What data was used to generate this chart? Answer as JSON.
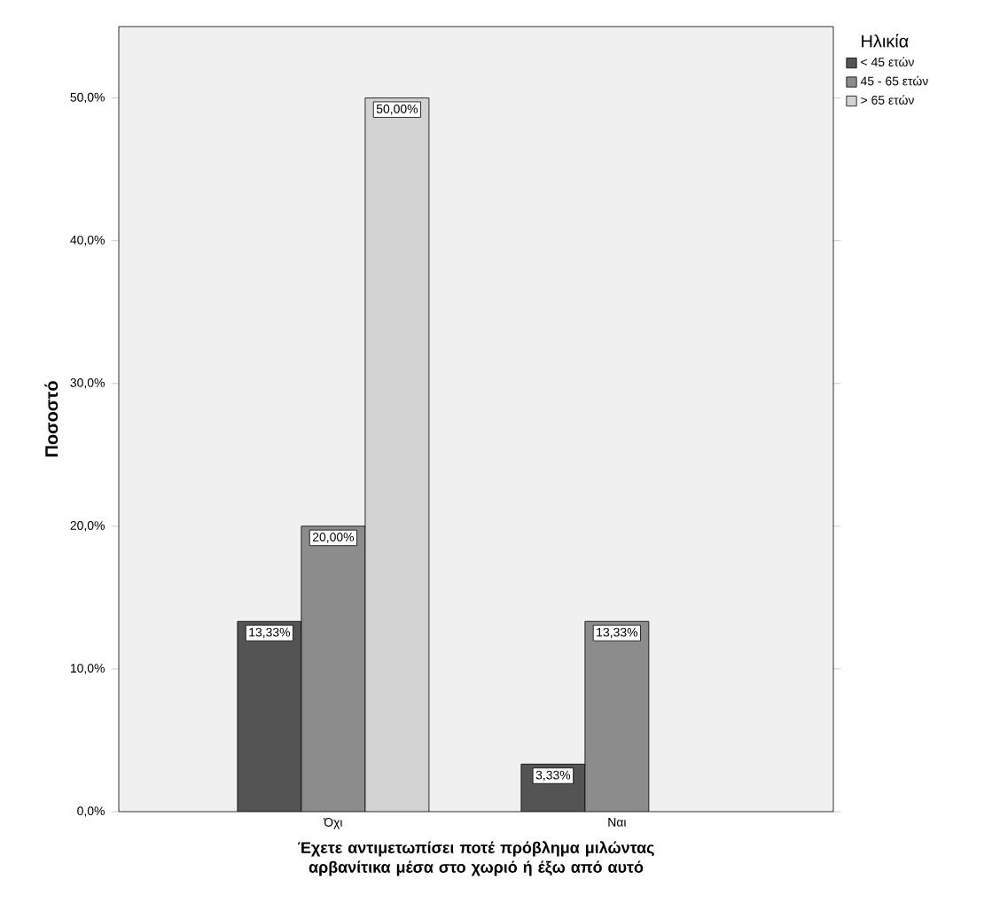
{
  "chart_data": {
    "type": "bar",
    "xlabel": "Έχετε αντιμετωπίσει ποτέ πρόβλημα μιλώντας αρβανίτικα μέσα στο χωριό ή έξω από αυτό",
    "ylabel": "Ποσοστό",
    "legend_title": "Ηλικία",
    "legend": "top right",
    "categories": [
      "Όχι",
      "Ναι"
    ],
    "series": [
      {
        "name": "< 45 ετών",
        "color": "#545454",
        "values": [
          13.33,
          3.33
        ],
        "value_labels": [
          "13,33%",
          "3,33%"
        ]
      },
      {
        "name": "45 - 65 ετών",
        "color": "#8c8c8c",
        "values": [
          20.0,
          13.33
        ],
        "value_labels": [
          "20,00%",
          "13,33%"
        ]
      },
      {
        "name": "> 65 ετών",
        "color": "#d2d2d2",
        "values": [
          50.0,
          null
        ],
        "value_labels": [
          "50,00%",
          null
        ]
      }
    ],
    "ylim": [
      0,
      55
    ],
    "yticks": [
      {
        "value": 0,
        "label": "0,0%"
      },
      {
        "value": 10,
        "label": "10,0%"
      },
      {
        "value": 20,
        "label": "20,0%"
      },
      {
        "value": 30,
        "label": "30,0%"
      },
      {
        "value": 40,
        "label": "40,0%"
      },
      {
        "value": 50,
        "label": "50,0%"
      }
    ]
  }
}
